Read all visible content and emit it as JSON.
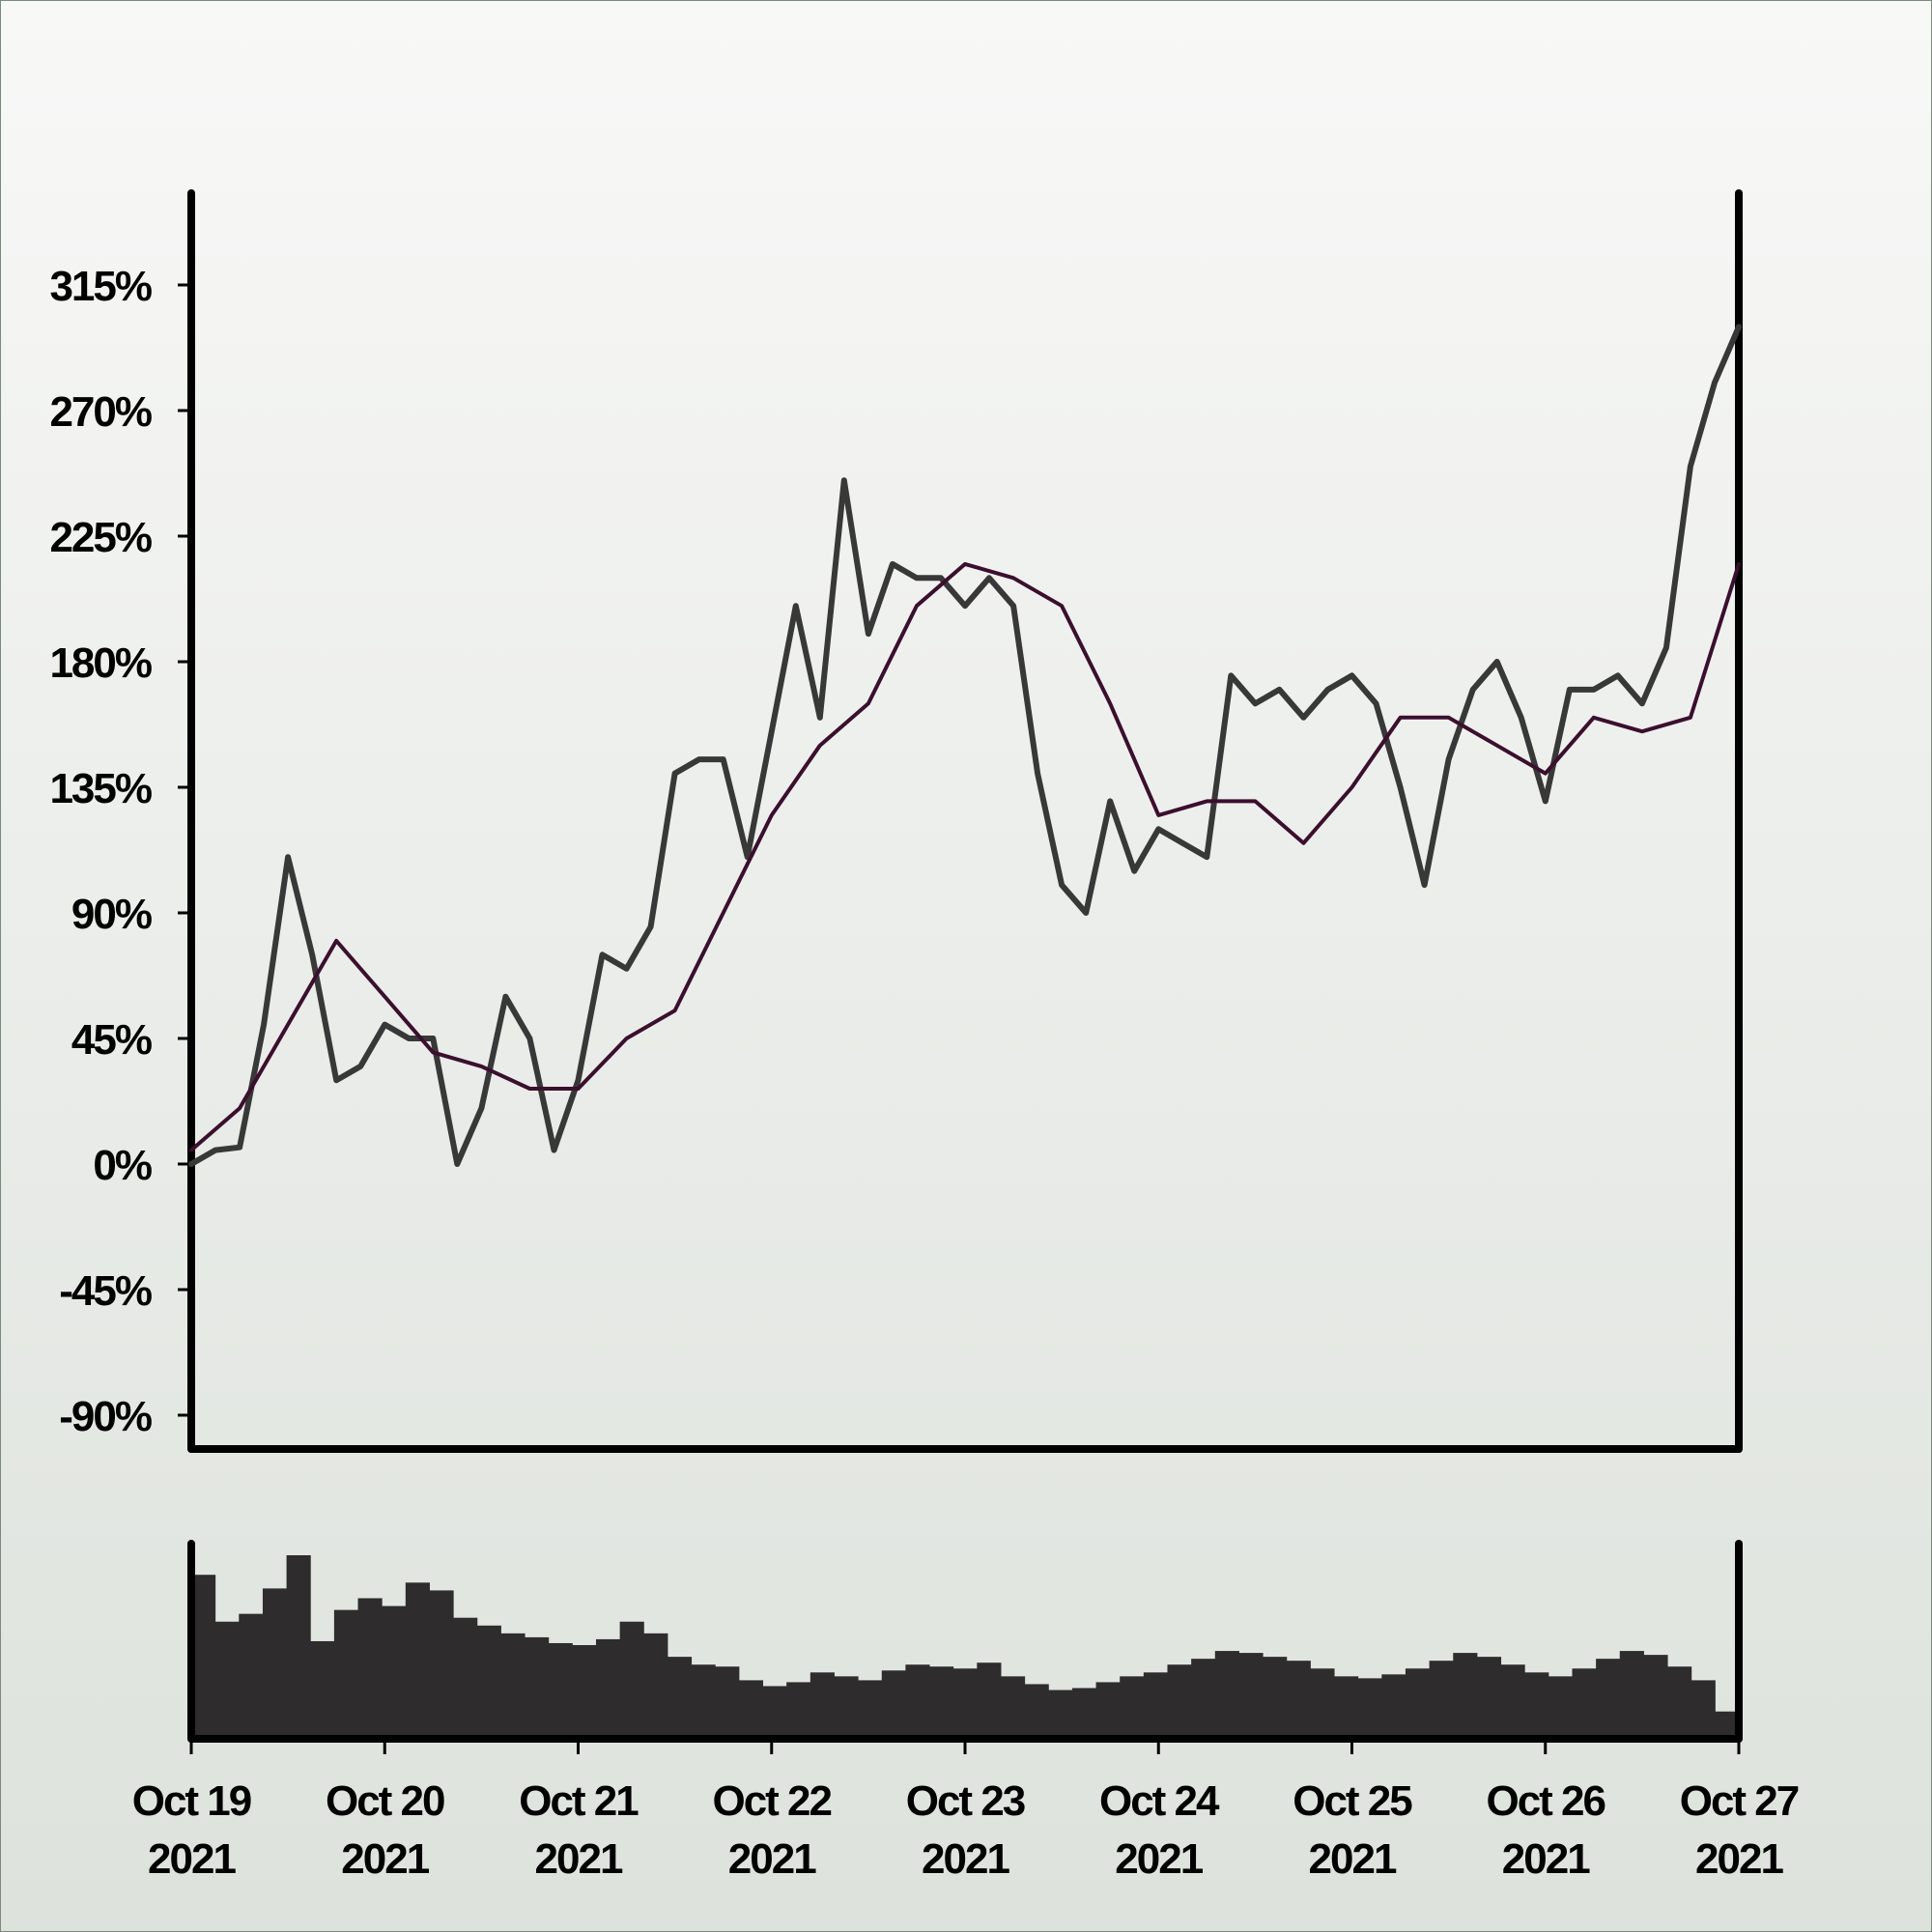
{
  "chart_data": {
    "type": "line",
    "title": "",
    "xlabel": "",
    "ylabel": "",
    "ylim": [
      -105,
      355
    ],
    "yticks": [
      "315%",
      "270%",
      "225%",
      "180%",
      "135%",
      "90%",
      "45%",
      "0%",
      "-45%",
      "-90%"
    ],
    "ytick_values": [
      315,
      270,
      225,
      180,
      135,
      90,
      45,
      0,
      -45,
      -90
    ],
    "xticks": [
      {
        "line1": "Oct 19",
        "line2": "2021"
      },
      {
        "line1": "Oct 20",
        "line2": "2021"
      },
      {
        "line1": "Oct 21",
        "line2": "2021"
      },
      {
        "line1": "Oct 22",
        "line2": "2021"
      },
      {
        "line1": "Oct 23",
        "line2": "2021"
      },
      {
        "line1": "Oct 24",
        "line2": "2021"
      },
      {
        "line1": "Oct 25",
        "line2": "2021"
      },
      {
        "line1": "Oct 26",
        "line2": "2021"
      },
      {
        "line1": "Oct 27",
        "line2": "2021"
      }
    ],
    "xlim": [
      "2021-10-19",
      "2021-10-27"
    ],
    "grid": false,
    "series": [
      {
        "role": "price",
        "color": "#383838",
        "x": [
          "2021-10-19T00:00",
          "2021-10-19T03:00",
          "2021-10-19T06:00",
          "2021-10-19T09:00",
          "2021-10-19T12:00",
          "2021-10-19T15:00",
          "2021-10-19T18:00",
          "2021-10-19T21:00",
          "2021-10-20T00:00",
          "2021-10-20T03:00",
          "2021-10-20T06:00",
          "2021-10-20T09:00",
          "2021-10-20T12:00",
          "2021-10-20T15:00",
          "2021-10-20T18:00",
          "2021-10-20T21:00",
          "2021-10-21T00:00",
          "2021-10-21T03:00",
          "2021-10-21T06:00",
          "2021-10-21T09:00",
          "2021-10-21T12:00",
          "2021-10-21T15:00",
          "2021-10-21T18:00",
          "2021-10-21T21:00",
          "2021-10-22T00:00",
          "2021-10-22T03:00",
          "2021-10-22T06:00",
          "2021-10-22T09:00",
          "2021-10-22T12:00",
          "2021-10-22T15:00",
          "2021-10-22T18:00",
          "2021-10-22T21:00",
          "2021-10-23T00:00",
          "2021-10-23T03:00",
          "2021-10-23T06:00",
          "2021-10-23T09:00",
          "2021-10-23T12:00",
          "2021-10-23T15:00",
          "2021-10-23T18:00",
          "2021-10-23T21:00",
          "2021-10-24T00:00",
          "2021-10-24T03:00",
          "2021-10-24T06:00",
          "2021-10-24T09:00",
          "2021-10-24T12:00",
          "2021-10-24T15:00",
          "2021-10-24T18:00",
          "2021-10-24T21:00",
          "2021-10-25T00:00",
          "2021-10-25T03:00",
          "2021-10-25T06:00",
          "2021-10-25T09:00",
          "2021-10-25T12:00",
          "2021-10-25T15:00",
          "2021-10-25T18:00",
          "2021-10-25T21:00",
          "2021-10-26T00:00",
          "2021-10-26T03:00",
          "2021-10-26T06:00",
          "2021-10-26T09:00",
          "2021-10-26T12:00",
          "2021-10-26T15:00",
          "2021-10-26T18:00",
          "2021-10-26T21:00",
          "2021-10-27T00:00"
        ],
        "values": [
          0,
          5,
          6,
          50,
          110,
          75,
          30,
          35,
          50,
          45,
          45,
          0,
          20,
          60,
          45,
          5,
          30,
          75,
          70,
          85,
          140,
          145,
          145,
          110,
          155,
          200,
          160,
          245,
          190,
          215,
          210,
          210,
          200,
          210,
          200,
          140,
          100,
          90,
          130,
          105,
          120,
          115,
          110,
          175,
          165,
          170,
          160,
          170,
          175,
          165,
          135,
          100,
          145,
          170,
          180,
          160,
          130,
          170,
          170,
          175,
          165,
          185,
          250,
          280,
          300
        ]
      },
      {
        "role": "moving-average",
        "color": "#3b0f2e",
        "x": [
          "2021-10-19T00:00",
          "2021-10-19T06:00",
          "2021-10-19T12:00",
          "2021-10-19T18:00",
          "2021-10-20T00:00",
          "2021-10-20T06:00",
          "2021-10-20T12:00",
          "2021-10-20T18:00",
          "2021-10-21T00:00",
          "2021-10-21T06:00",
          "2021-10-21T12:00",
          "2021-10-21T18:00",
          "2021-10-22T00:00",
          "2021-10-22T06:00",
          "2021-10-22T12:00",
          "2021-10-22T18:00",
          "2021-10-23T00:00",
          "2021-10-23T06:00",
          "2021-10-23T12:00",
          "2021-10-23T18:00",
          "2021-10-24T00:00",
          "2021-10-24T06:00",
          "2021-10-24T12:00",
          "2021-10-24T18:00",
          "2021-10-25T00:00",
          "2021-10-25T06:00",
          "2021-10-25T12:00",
          "2021-10-25T18:00",
          "2021-10-26T00:00",
          "2021-10-26T06:00",
          "2021-10-26T12:00",
          "2021-10-26T18:00",
          "2021-10-27T00:00"
        ],
        "values": [
          5,
          20,
          50,
          80,
          60,
          40,
          35,
          27,
          27,
          45,
          55,
          90,
          125,
          150,
          165,
          200,
          215,
          210,
          200,
          165,
          125,
          130,
          130,
          115,
          135,
          160,
          160,
          150,
          140,
          160,
          155,
          160,
          215
        ]
      }
    ],
    "volume": {
      "color": "#2e2c2d",
      "values": [
        82,
        58,
        62,
        75,
        92,
        48,
        64,
        70,
        66,
        78,
        74,
        60,
        56,
        52,
        50,
        47,
        46,
        49,
        58,
        52,
        40,
        36,
        35,
        28,
        25,
        27,
        32,
        30,
        28,
        33,
        36,
        35,
        34,
        37,
        30,
        26,
        23,
        24,
        27,
        30,
        32,
        36,
        39,
        43,
        42,
        40,
        38,
        34,
        30,
        29,
        31,
        34,
        38,
        42,
        40,
        36,
        32,
        30,
        34,
        39,
        43,
        41,
        35,
        28,
        12
      ]
    }
  }
}
